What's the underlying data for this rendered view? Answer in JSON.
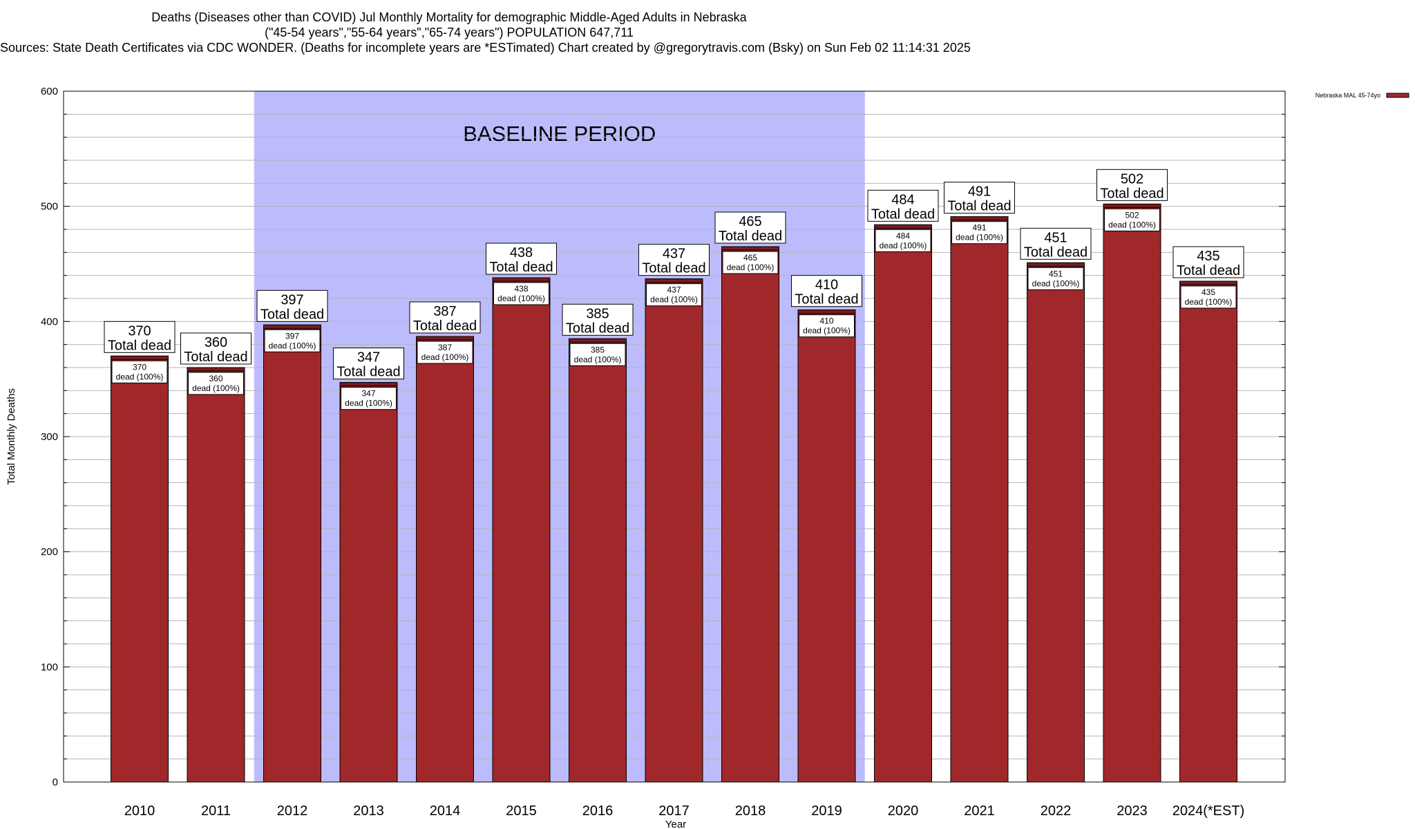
{
  "header": {
    "title_line1": "Deaths (Diseases other than COVID) Jul Monthly Mortality for demographic Middle-Aged Adults in Nebraska",
    "title_line2": "(\"45-54 years\",\"55-64 years\",\"65-74 years\") POPULATION 647,711",
    "title_line3": "Sources: State Death Certificates via CDC WONDER. (Deaths for incomplete years are *ESTimated)                  Chart created by @gregorytravis.com (Bsky) on Sun Feb 02 11:14:31 2025"
  },
  "chart_data": {
    "type": "bar",
    "xlabel": "Year",
    "ylabel": "Total Monthly Deaths",
    "ylim": [
      0,
      600
    ],
    "y_ticks": [
      0,
      100,
      200,
      300,
      400,
      500,
      600
    ],
    "y_minor_step": 20,
    "grid": true,
    "categories": [
      "2010",
      "2011",
      "2012",
      "2013",
      "2014",
      "2015",
      "2016",
      "2017",
      "2018",
      "2019",
      "2020",
      "2021",
      "2022",
      "2023",
      "2024(*EST)"
    ],
    "series": [
      {
        "name": "Nebraska MAL 45-74yo",
        "values": [
          370,
          360,
          397,
          347,
          387,
          438,
          385,
          437,
          465,
          410,
          484,
          491,
          451,
          502,
          435
        ]
      }
    ],
    "total_label_suffix": "Total dead",
    "inner_label_suffix": "dead (100%)",
    "baseline_period": {
      "label": "BASELINE PERIOD",
      "start_category": "2012",
      "end_category": "2019"
    },
    "legend_position": "top-right",
    "colors": {
      "bar": "#a0282a",
      "bar_cap": "#7a1c1e",
      "baseline_shade": "#bcbcfd",
      "grid": "#b5b5b5"
    }
  }
}
